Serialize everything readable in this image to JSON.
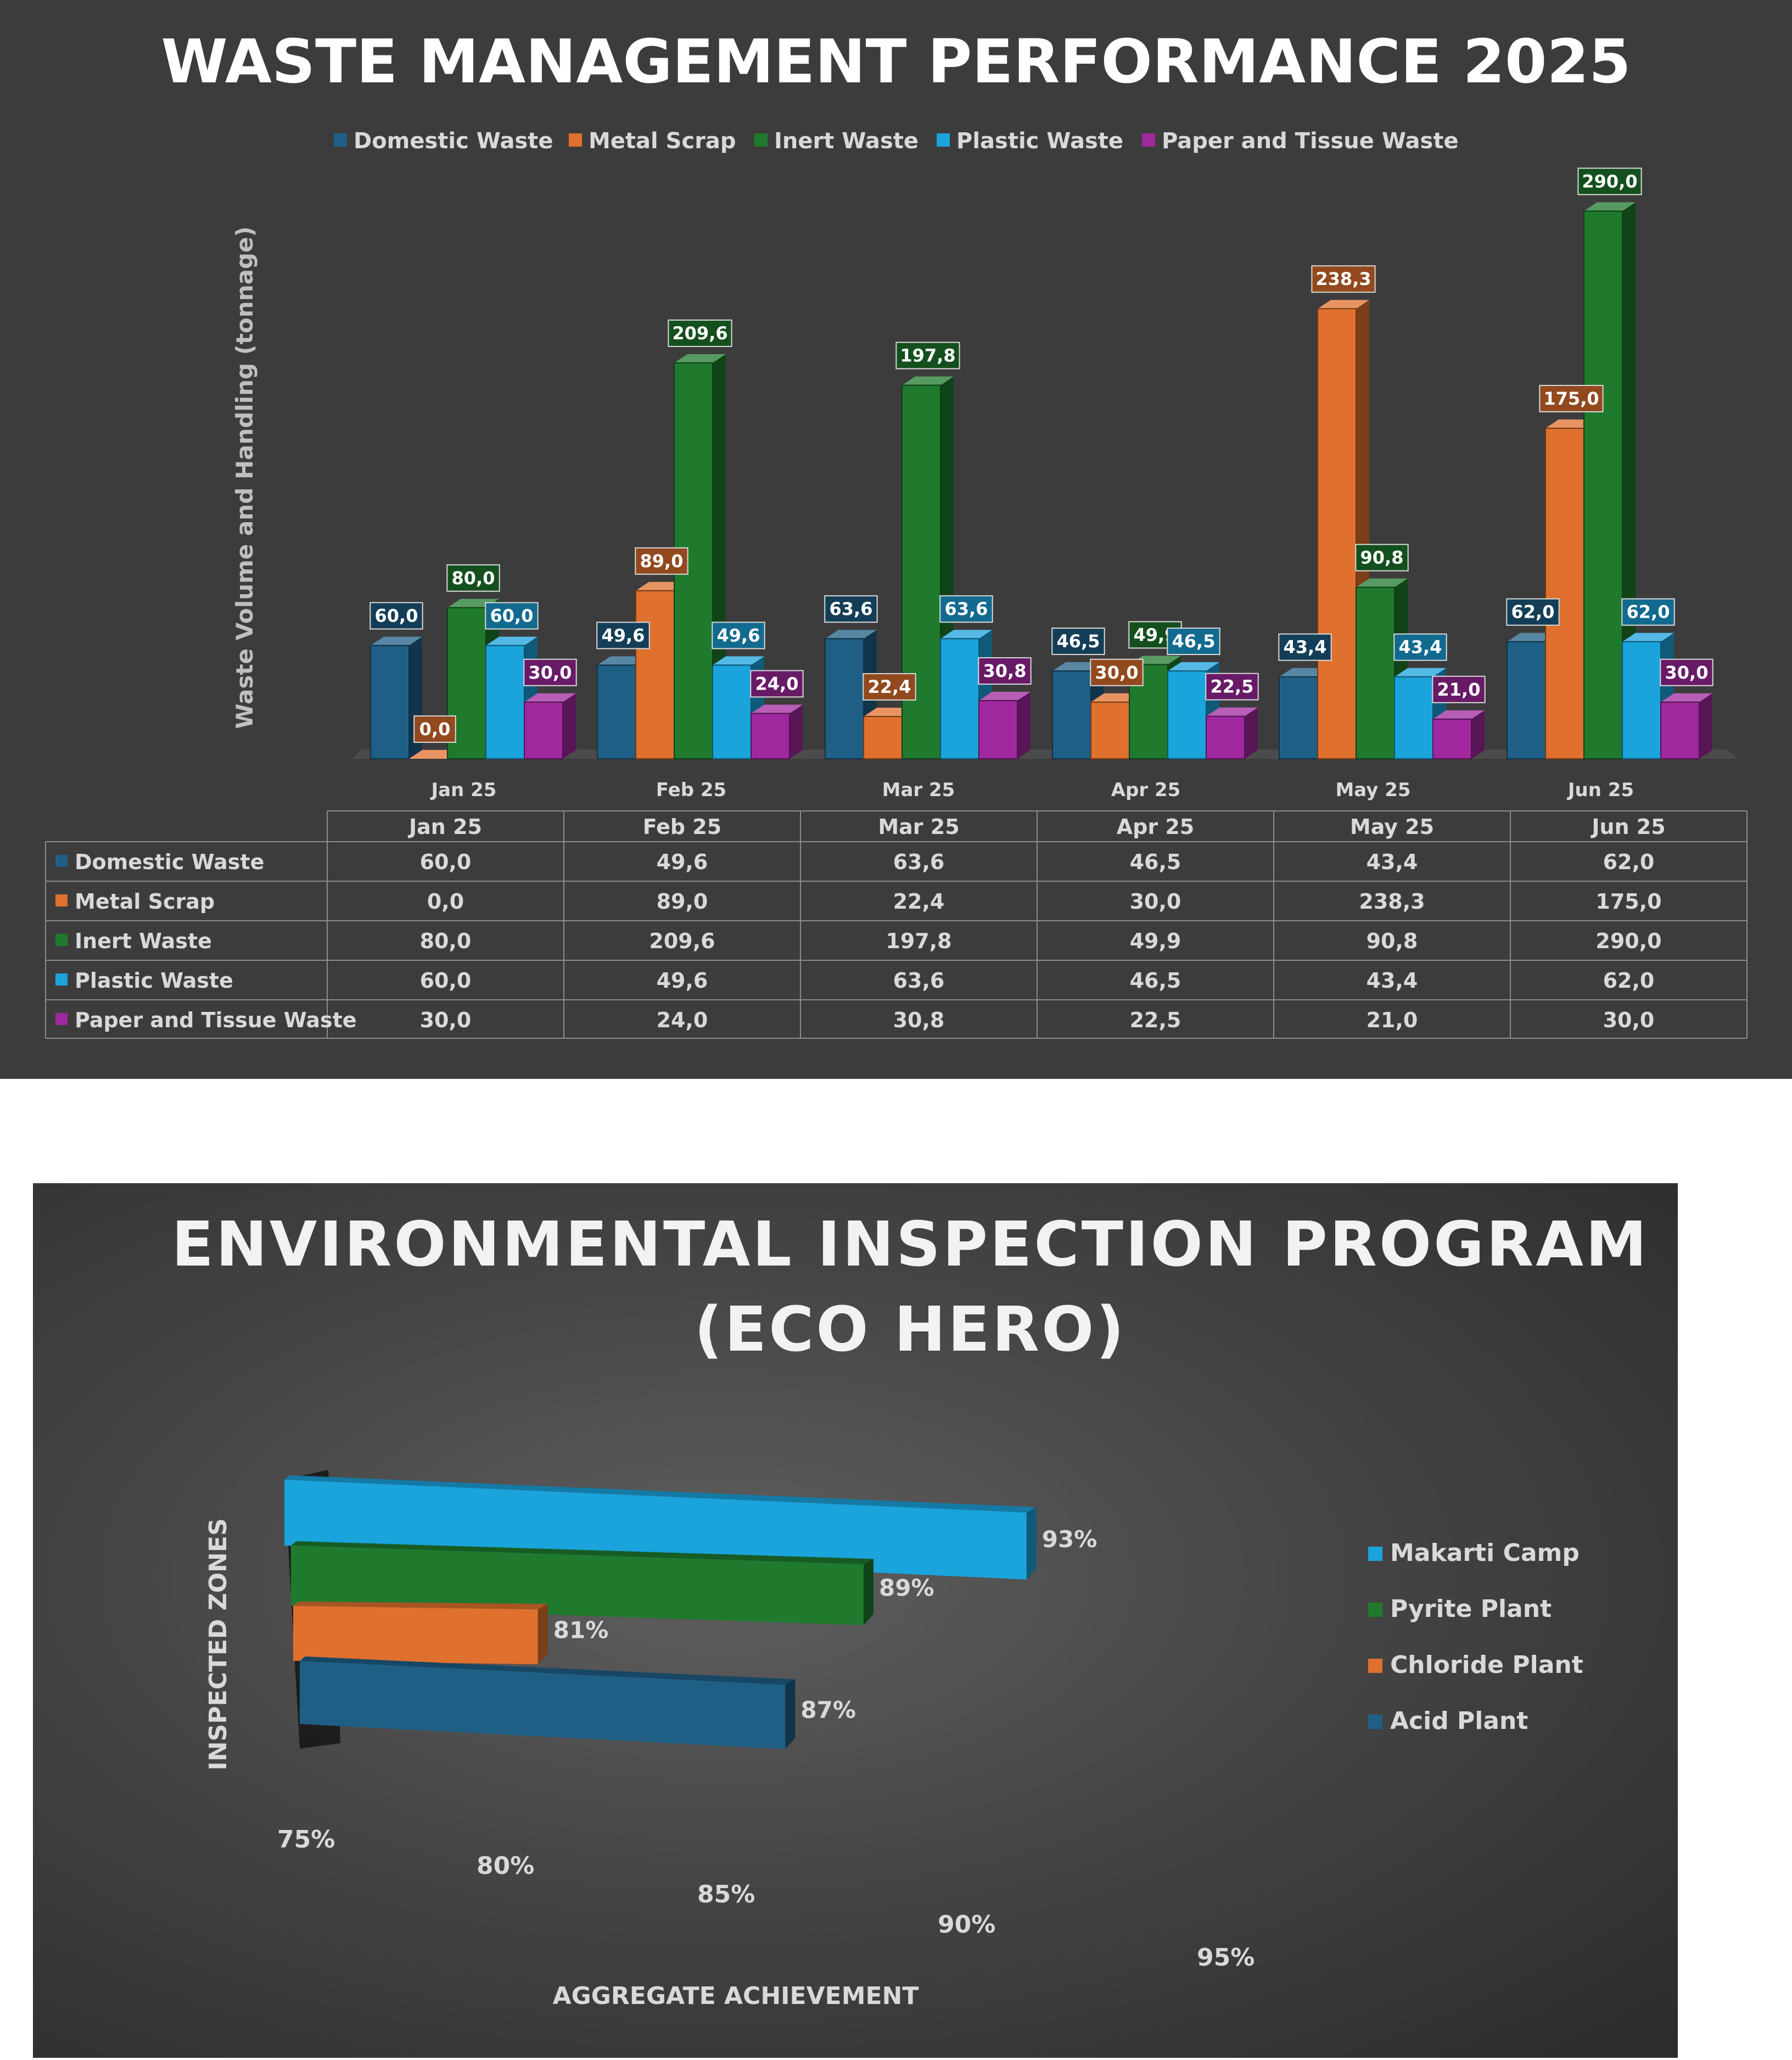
{
  "chart_data": [
    {
      "type": "bar",
      "title": "WASTE MANAGEMENT PERFORMANCE 2025",
      "ylabel": "Waste Volume and Handling (tonnage)",
      "ylim": [
        0,
        300
      ],
      "legend_position": "top",
      "grid": false,
      "categories": [
        "Jan 25",
        "Feb 25",
        "Mar 25",
        "Apr 25",
        "May 25",
        "Jun 25"
      ],
      "series": [
        {
          "name": "Domestic Waste",
          "color": "#1f5f86",
          "values": [
            60.0,
            49.6,
            63.6,
            46.5,
            43.4,
            62.0
          ],
          "labels": [
            "60,0",
            "49,6",
            "63,6",
            "46,5",
            "43,4",
            "62,0"
          ]
        },
        {
          "name": "Metal Scrap",
          "color": "#e0702e",
          "values": [
            0.0,
            89.0,
            22.4,
            30.0,
            238.3,
            175.0
          ],
          "labels": [
            "0,0",
            "89,0",
            "22,4",
            "30,0",
            "238,3",
            "175,0"
          ]
        },
        {
          "name": "Inert Waste",
          "color": "#1f7a2e",
          "values": [
            80.0,
            209.6,
            197.8,
            49.9,
            90.8,
            290.0
          ],
          "labels": [
            "80,0",
            "209,6",
            "197,8",
            "49,9",
            "90,8",
            "290,0"
          ]
        },
        {
          "name": "Plastic Waste",
          "color": "#1ba3dc",
          "values": [
            60.0,
            49.6,
            63.6,
            46.5,
            43.4,
            62.0
          ],
          "labels": [
            "60,0",
            "49,6",
            "63,6",
            "46,5",
            "43,4",
            "62,0"
          ]
        },
        {
          "name": "Paper and Tissue Waste",
          "color": "#a0289e",
          "values": [
            30.0,
            24.0,
            30.8,
            22.5,
            21.0,
            30.0
          ],
          "labels": [
            "30,0",
            "24,0",
            "30,8",
            "22,5",
            "21,0",
            "30,0"
          ]
        }
      ],
      "data_table": true
    },
    {
      "type": "bar",
      "orientation": "horizontal",
      "title": "ENVIRONMENTAL INSPECTION PROGRAM (ECO HERO)",
      "title_lines": [
        "ENVIRONMENTAL INSPECTION PROGRAM",
        "(ECO HERO)"
      ],
      "xlabel": "AGGREGATE ACHIEVEMENT",
      "ylabel": "INSPECTED ZONES",
      "xlim": [
        75,
        95
      ],
      "xticks": [
        "75%",
        "80%",
        "85%",
        "90%",
        "95%"
      ],
      "legend_position": "right",
      "grid": false,
      "series": [
        {
          "name": "Makarti Camp",
          "color": "#1ba3dc",
          "value": 93,
          "label": "93%"
        },
        {
          "name": "Pyrite Plant",
          "color": "#1f7a2e",
          "value": 89,
          "label": "89%"
        },
        {
          "name": "Chloride Plant",
          "color": "#e0702e",
          "value": 81,
          "label": "81%"
        },
        {
          "name": "Acid Plant",
          "color": "#1f5f86",
          "value": 87,
          "label": "87%"
        }
      ]
    }
  ]
}
